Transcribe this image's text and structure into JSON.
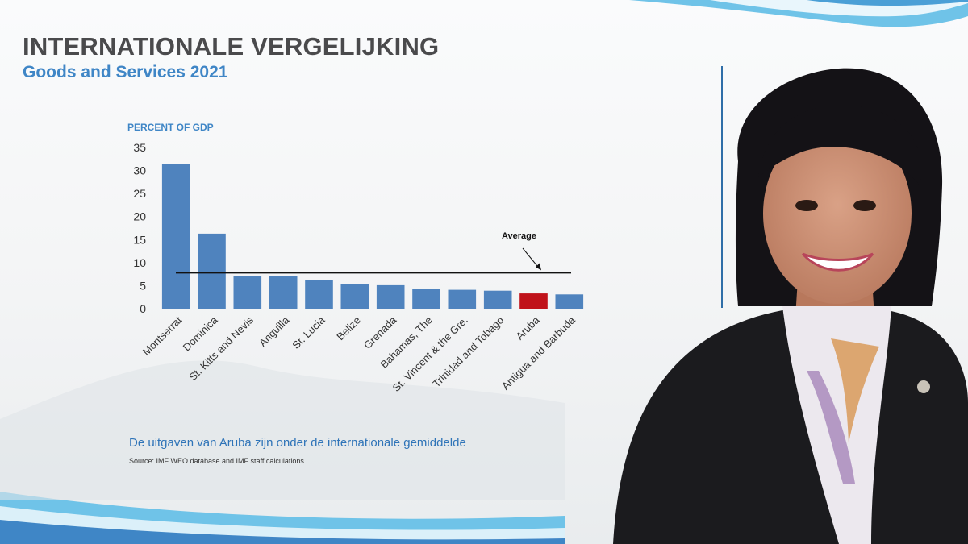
{
  "slide": {
    "title": "INTERNATIONALE VERGELIJKING",
    "subtitle": "Goods and Services 2021",
    "caption": "De uitgaven van Aruba zijn onder de internationale gemiddelde",
    "source": "Source: IMF WEO database and IMF staff calculations."
  },
  "colors": {
    "bar": "#4f83be",
    "highlight": "#c0121a",
    "accent_blue": "#3f86c6",
    "wave_blue": "#6fc3e8"
  },
  "chart_data": {
    "type": "bar",
    "ylabel": "PERCENT OF GDP",
    "ylim": [
      0,
      35
    ],
    "yticks": [
      0,
      5,
      10,
      15,
      20,
      25,
      30,
      35
    ],
    "grid": false,
    "categories": [
      "Montserrat",
      "Dominica",
      "St. Kitts and Nevis",
      "Anguilla",
      "St. Lucia",
      "Belize",
      "Grenada",
      "Bahamas, The",
      "St. Vincent & the Gre.",
      "Trinidad and Tobago",
      "Aruba",
      "Antigua and Barbuda"
    ],
    "values": [
      31.5,
      16.3,
      7.1,
      7.0,
      6.2,
      5.3,
      5.1,
      4.3,
      4.1,
      3.9,
      3.3,
      3.1
    ],
    "highlight_index": 10,
    "average": {
      "label": "Average",
      "value": 7.8
    }
  },
  "presenter": {
    "description_icon": "presenter-photo"
  }
}
